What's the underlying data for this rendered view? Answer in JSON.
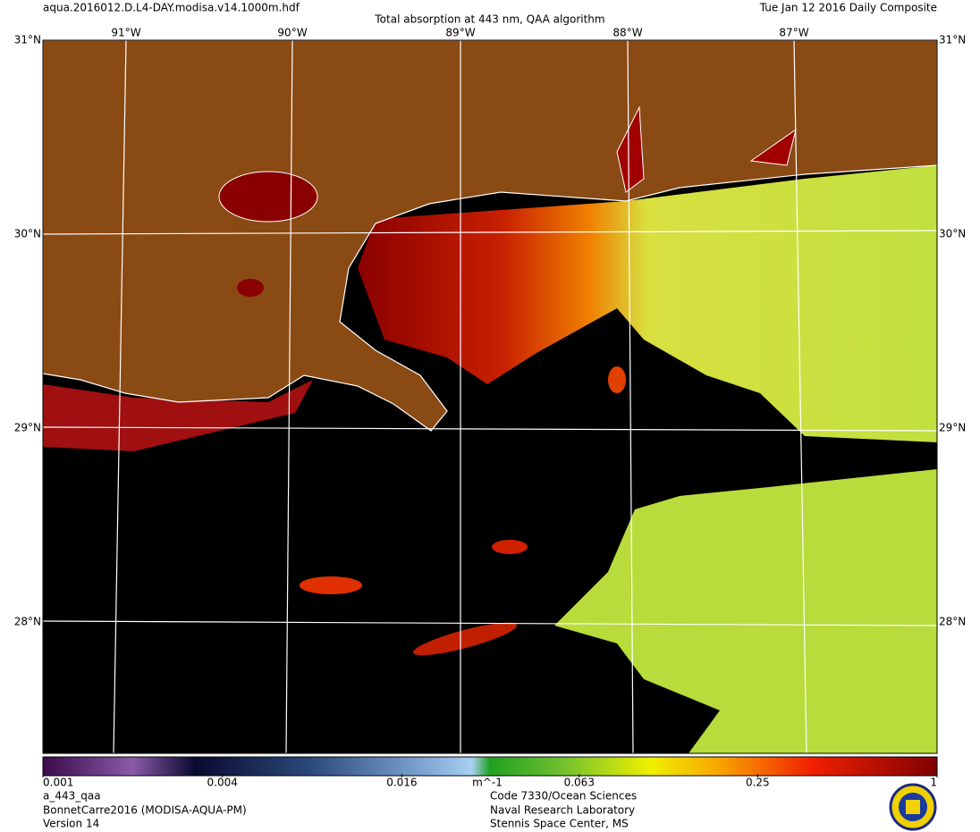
{
  "header": {
    "filename": "aqua.2016012.D.L4-DAY.modisa.v14.1000m.hdf",
    "title": "Total absorption at 443 nm, QAA algorithm",
    "date": "Tue Jan 12 2016 Daily Composite"
  },
  "grid": {
    "lat_labels": [
      "31°N",
      "30°N",
      "29°N",
      "28°N"
    ],
    "lon_labels": [
      "91°W",
      "90°W",
      "89°W",
      "88°W",
      "87°W"
    ]
  },
  "colorbar": {
    "scale": "log",
    "range": [
      0.001,
      1
    ],
    "ticks": [
      0.001,
      0.004,
      0.016,
      0.063,
      0.25,
      1
    ],
    "unit": "m^-1"
  },
  "footer": {
    "product": "a_443_qaa",
    "dataset": "BonnetCarre2016 (MODISA-AQUA-PM)",
    "version": "Version 14",
    "org_line1": "Code 7330/Ocean Sciences",
    "org_line2": "Naval Research Laboratory",
    "org_line3": "Stennis Space Center, MS"
  }
}
